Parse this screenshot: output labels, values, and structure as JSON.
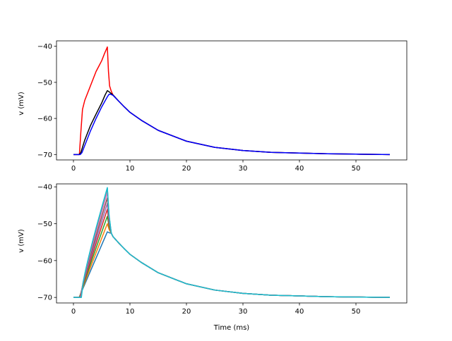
{
  "chart_data": [
    {
      "type": "line",
      "title": "",
      "xlabel": "",
      "ylabel": "v (mV)",
      "xlim": [
        -3,
        59
      ],
      "ylim": [
        -71.5,
        -38.5
      ],
      "xticks": [
        0,
        10,
        20,
        30,
        40,
        50
      ],
      "xtick_labels": [
        "0",
        "10",
        "20",
        "30",
        "40",
        "50"
      ],
      "yticks": [
        -70,
        -60,
        -50,
        -40
      ],
      "ytick_labels": [
        "−70",
        "−60",
        "−50",
        "−40"
      ],
      "series": [
        {
          "color": "#ff0000",
          "x": [
            0,
            1.05,
            1.3,
            1.6,
            2,
            2.5,
            3,
            3.5,
            4,
            4.5,
            5,
            5.5,
            6,
            6.05,
            6.2,
            6.4,
            6.7,
            7,
            8,
            9,
            10,
            12,
            15,
            20,
            25,
            30,
            35,
            40,
            45,
            50,
            56
          ],
          "y": [
            -70,
            -70,
            -64,
            -57.5,
            -55,
            -53,
            -51,
            -49,
            -47,
            -45.5,
            -44,
            -42,
            -40.2,
            -42,
            -47,
            -51,
            -52.5,
            -53.5,
            -55.2,
            -56.8,
            -58.3,
            -60.5,
            -63.3,
            -66.3,
            -68,
            -68.9,
            -69.4,
            -69.6,
            -69.8,
            -69.9,
            -70
          ]
        },
        {
          "color": "#000000",
          "x": [
            0,
            1,
            1.3,
            1.6,
            2,
            3,
            4,
            5,
            5.6,
            6,
            6.3,
            6.6,
            7,
            8,
            9,
            10,
            12,
            15,
            20,
            25,
            30,
            35,
            40,
            45,
            50,
            56
          ],
          "y": [
            -70,
            -70,
            -69.5,
            -68,
            -66,
            -62,
            -58.8,
            -55.7,
            -53.5,
            -52.3,
            -52.6,
            -53,
            -53.5,
            -55.2,
            -56.8,
            -58.3,
            -60.5,
            -63.3,
            -66.3,
            -68,
            -68.9,
            -69.4,
            -69.6,
            -69.8,
            -69.9,
            -70
          ]
        },
        {
          "color": "#0000ff",
          "x": [
            0,
            1.2,
            1.5,
            2,
            3,
            4,
            5,
            6,
            6.3,
            6.6,
            7,
            8,
            9,
            10,
            12,
            15,
            20,
            25,
            30,
            35,
            40,
            45,
            50,
            56
          ],
          "y": [
            -70,
            -70,
            -69.5,
            -67.5,
            -63.5,
            -60,
            -56.8,
            -54,
            -53.3,
            -53.3,
            -53.6,
            -55.2,
            -56.8,
            -58.3,
            -60.5,
            -63.3,
            -66.3,
            -68,
            -68.9,
            -69.4,
            -69.6,
            -69.8,
            -69.9,
            -70
          ]
        }
      ]
    },
    {
      "type": "line",
      "title": "",
      "xlabel": "Time (ms)",
      "ylabel": "v (mV)",
      "xlim": [
        -3,
        59
      ],
      "ylim": [
        -71.5,
        -39.2
      ],
      "xticks": [
        0,
        10,
        20,
        30,
        40,
        50
      ],
      "xtick_labels": [
        "0",
        "10",
        "20",
        "30",
        "40",
        "50"
      ],
      "yticks": [
        -70,
        -60,
        -50,
        -40
      ],
      "ytick_labels": [
        "−70",
        "−60",
        "−50",
        "−40"
      ],
      "peaks": [
        -52.2,
        -50,
        -48,
        -46.1,
        -44.5,
        -43,
        -41.6,
        -40.5,
        -40.2
      ],
      "colors": [
        "#1f77b4",
        "#ff7f0e",
        "#2ca02c",
        "#d62728",
        "#9467bd",
        "#8c564b",
        "#e377c2",
        "#7f7f7f",
        "#17becf"
      ],
      "decay": {
        "x": [
          6.7,
          7,
          8,
          9,
          10,
          12,
          15,
          20,
          25,
          30,
          35,
          40,
          45,
          50,
          56
        ],
        "y": [
          -52.6,
          -53.5,
          -55.2,
          -56.8,
          -58.3,
          -60.5,
          -63.3,
          -66.3,
          -68,
          -68.9,
          -69.4,
          -69.6,
          -69.8,
          -69.9,
          -70
        ]
      }
    }
  ]
}
